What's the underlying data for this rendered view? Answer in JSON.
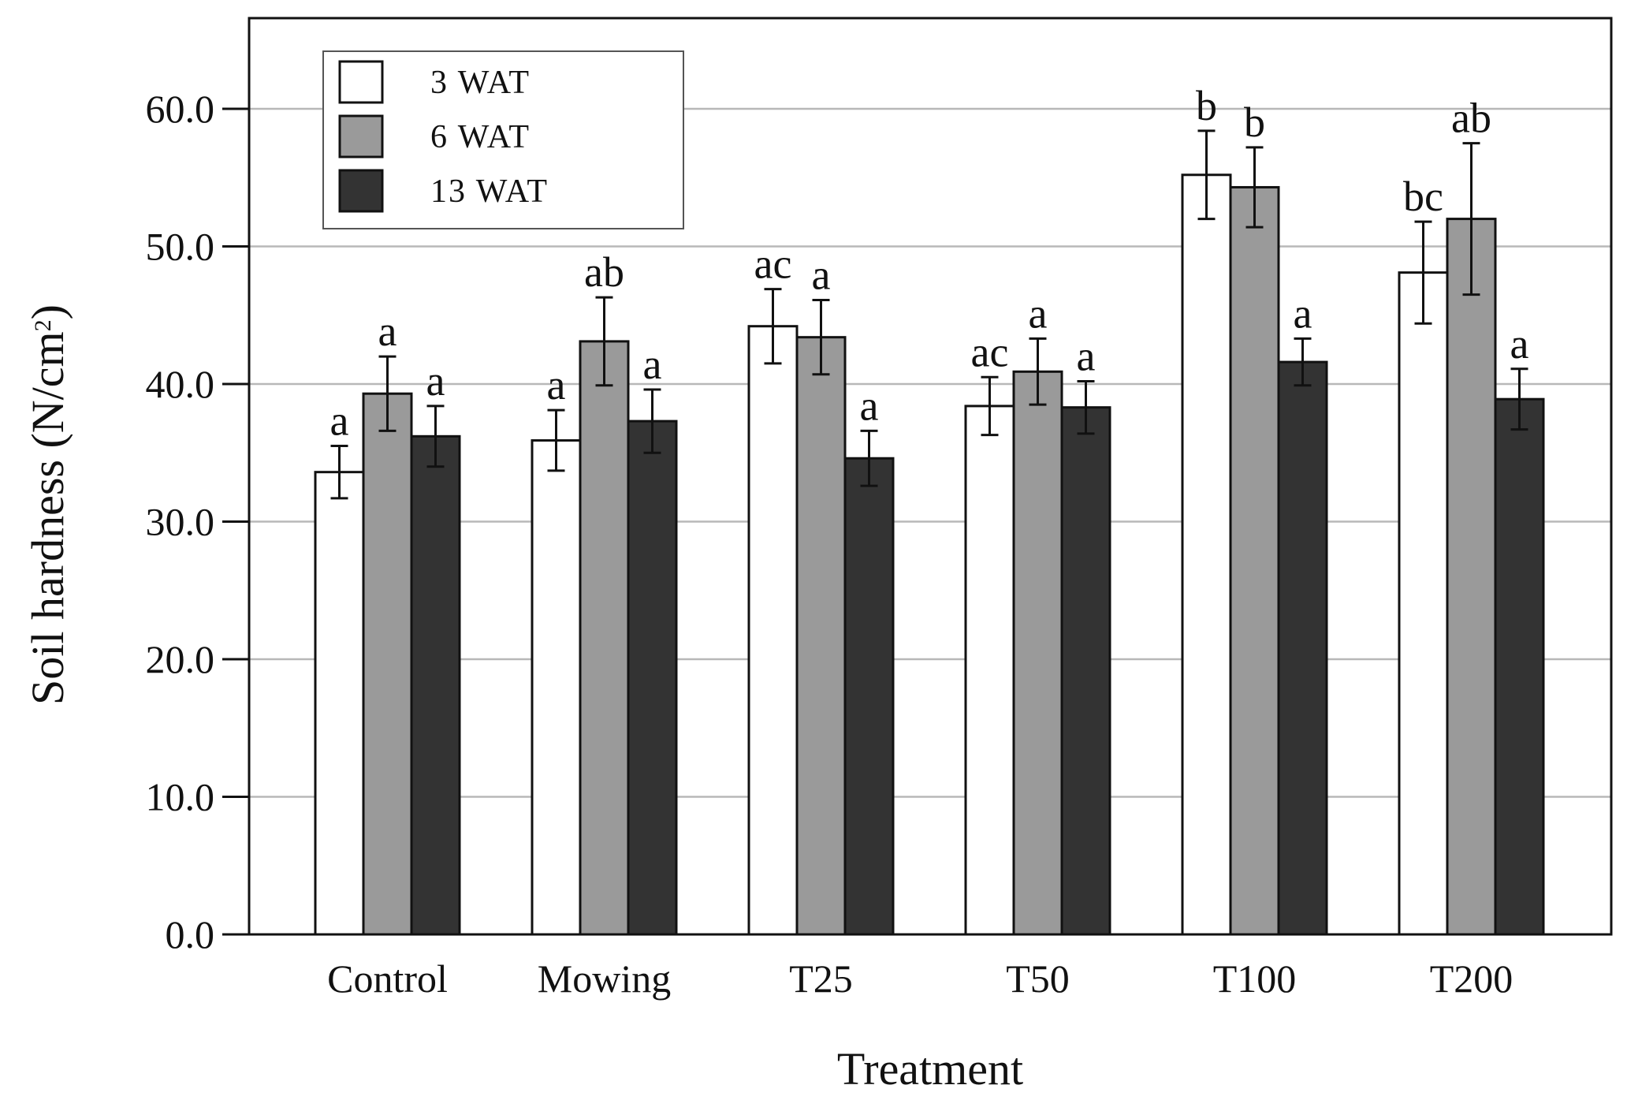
{
  "chart_data": {
    "type": "bar",
    "title": "",
    "xlabel": "Treatment",
    "ylabel_main": "Soil hardness (N/cm",
    "ylabel_sup": "2",
    "ylabel_close": ")",
    "ylim": [
      0,
      65
    ],
    "yticks": [
      0,
      10,
      20,
      30,
      40,
      50,
      60
    ],
    "ytick_labels": [
      "0.0",
      "10.0",
      "20.0",
      "30.0",
      "40.0",
      "50.0",
      "60.0"
    ],
    "grid": true,
    "legend_position": "top-left",
    "categories": [
      "Control",
      "Mowing",
      "T25",
      "T50",
      "T100",
      "T200"
    ],
    "series": [
      {
        "name": "3 WAT",
        "color": "#ffffff",
        "values": [
          33.6,
          35.9,
          44.2,
          38.4,
          55.2,
          48.1
        ],
        "errors": [
          1.9,
          2.2,
          2.7,
          2.1,
          3.2,
          3.7
        ],
        "significance": [
          "a",
          "a",
          "ac",
          "ac",
          "b",
          "bc"
        ]
      },
      {
        "name": "6 WAT",
        "color": "#9a9a9a",
        "values": [
          39.3,
          43.1,
          43.4,
          40.9,
          54.3,
          52.0
        ],
        "errors": [
          2.7,
          3.2,
          2.7,
          2.4,
          2.9,
          5.5
        ],
        "significance": [
          "a",
          "ab",
          "a",
          "a",
          "b",
          "ab"
        ]
      },
      {
        "name": "13 WAT",
        "color": "#333333",
        "values": [
          36.2,
          37.3,
          34.6,
          38.3,
          41.6,
          38.9
        ],
        "errors": [
          2.2,
          2.3,
          2.0,
          1.9,
          1.7,
          2.2
        ],
        "significance": [
          "a",
          "a",
          "a",
          "a",
          "a",
          "a"
        ]
      }
    ]
  }
}
